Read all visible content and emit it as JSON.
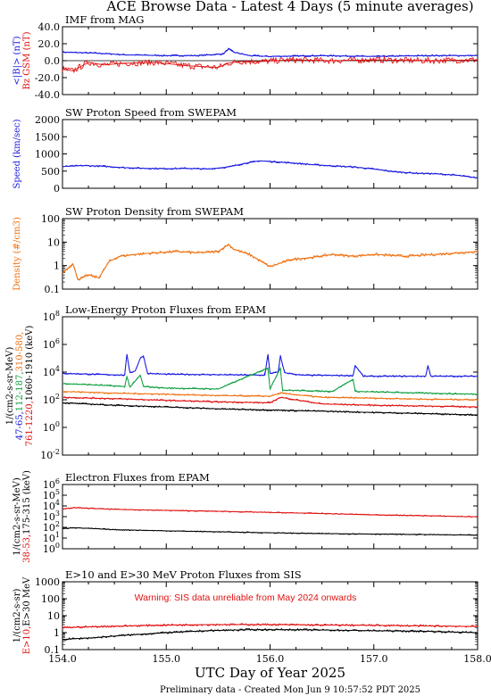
{
  "title": "ACE Browse Data - Latest 4 Days (5 minute averages)",
  "footer": "Preliminary data - Created Mon Jun  9 10:57:52 PDT 2025",
  "colors": {
    "black": "#000000",
    "blue": "#1a1ae0",
    "red": "#e01010",
    "green": "#10a040",
    "orange": "#f07010"
  },
  "chart_data": [
    {
      "type": "line",
      "title": "IMF from MAG",
      "ylim": [
        -40,
        40
      ],
      "yticks": [
        "40.0",
        "20.0",
        "0.0",
        "-20.0",
        "-40.0"
      ],
      "ylabel_parts": [
        {
          "text": "<|B|> (nT)",
          "color": "blue"
        },
        {
          "text": "Bz GSM (nT)",
          "color": "red"
        }
      ],
      "series": [
        {
          "color": "blue",
          "x": [
            154.0,
            154.3,
            154.6,
            155.0,
            155.3,
            155.55,
            155.6,
            155.65,
            155.8,
            156.0,
            156.5,
            157.0,
            157.5,
            158.0
          ],
          "values": [
            10,
            9,
            7,
            6,
            6,
            8,
            14,
            10,
            6,
            5,
            6,
            5,
            6,
            6
          ]
        },
        {
          "color": "red",
          "x": [
            154.0,
            154.1,
            154.25,
            154.4,
            154.6,
            154.9,
            155.2,
            155.5,
            155.6,
            155.7,
            155.9,
            156.2,
            156.6,
            157.0,
            157.5,
            158.0
          ],
          "values": [
            -10,
            -12,
            -2,
            -5,
            -3,
            -2,
            -6,
            -8,
            -3,
            -1,
            -1,
            1,
            0,
            1,
            0,
            1
          ]
        }
      ]
    },
    {
      "type": "line",
      "title": "SW Proton Speed from SWEPAM",
      "ylim": [
        0,
        2000
      ],
      "yticks": [
        "2000",
        "1500",
        "1000",
        "500",
        "0"
      ],
      "ylabel_parts": [
        {
          "text": "Speed (km/sec)",
          "color": "blue"
        }
      ],
      "series": [
        {
          "color": "blue",
          "x": [
            154.0,
            154.2,
            154.4,
            154.6,
            154.8,
            155.0,
            155.2,
            155.4,
            155.6,
            155.75,
            155.9,
            156.0,
            156.2,
            156.4,
            156.6,
            156.8,
            157.0,
            157.2,
            157.4,
            157.6,
            157.8,
            158.0
          ],
          "values": [
            630,
            660,
            640,
            600,
            580,
            570,
            580,
            560,
            620,
            720,
            800,
            780,
            740,
            690,
            650,
            620,
            560,
            480,
            440,
            420,
            380,
            300
          ]
        }
      ]
    },
    {
      "type": "line",
      "title": "SW Proton Density from SWEPAM",
      "scale": "log",
      "ylim": [
        0.1,
        100
      ],
      "yticks": [
        "100",
        "10",
        "1",
        "0.1"
      ],
      "ylabel_parts": [
        {
          "text": "Density (#/cm3)",
          "color": "orange"
        }
      ],
      "series": [
        {
          "color": "orange",
          "x": [
            154.0,
            154.1,
            154.15,
            154.25,
            154.35,
            154.45,
            154.55,
            154.7,
            154.9,
            155.1,
            155.3,
            155.5,
            155.6,
            155.65,
            155.8,
            156.0,
            156.2,
            156.4,
            156.6,
            156.8,
            157.0,
            157.3,
            157.6,
            158.0
          ],
          "values": [
            0.5,
            1.2,
            0.25,
            0.4,
            0.3,
            1.5,
            2.5,
            3,
            3.5,
            4,
            3.5,
            4,
            8,
            5,
            3,
            0.9,
            1.8,
            2.2,
            3,
            2.5,
            3,
            2.5,
            3,
            4
          ]
        }
      ]
    },
    {
      "type": "line",
      "title": "Low-Energy Proton Fluxes from EPAM",
      "scale": "log",
      "ylim": [
        0.01,
        100000000
      ],
      "yticks": [
        "10^8",
        "10^6",
        "10^4",
        "10^2",
        "10^0",
        "10^-2"
      ],
      "ylabel_parts": [
        {
          "text": "1/(cm2-s-sr-MeV)",
          "color": "black"
        },
        {
          "text": "47-65,",
          "color": "blue"
        },
        {
          "text": "112-187,",
          "color": "green"
        },
        {
          "text": "310-580,",
          "color": "orange"
        },
        {
          "text": "761-1220,",
          "color": "red"
        },
        {
          "text": "1060-1910 (keV)",
          "color": "black"
        }
      ],
      "series": [
        {
          "color": "blue",
          "x": [
            154.0,
            154.6,
            154.62,
            154.65,
            154.7,
            154.75,
            154.78,
            154.82,
            155.0,
            155.5,
            155.95,
            155.98,
            156.0,
            156.08,
            156.1,
            156.14,
            156.3,
            156.8,
            156.82,
            156.9,
            157.5,
            157.52,
            157.55,
            158.0
          ],
          "values": [
            8000,
            6000,
            200000,
            9000,
            12000,
            100000,
            150000,
            8000,
            7000,
            6500,
            6000,
            200000,
            8000,
            10000,
            150000,
            9000,
            6000,
            5500,
            30000,
            5000,
            5000,
            30000,
            5000,
            5000
          ]
        },
        {
          "color": "green",
          "x": [
            154.0,
            154.3,
            154.6,
            154.62,
            154.65,
            154.75,
            154.78,
            155.0,
            155.5,
            155.98,
            156.0,
            156.1,
            156.12,
            156.6,
            156.8,
            156.82,
            157.5,
            158.0
          ],
          "values": [
            1500,
            1200,
            900,
            5000,
            800,
            6000,
            900,
            700,
            600,
            20000,
            600,
            20000,
            500,
            400,
            3000,
            400,
            300,
            250
          ]
        },
        {
          "color": "orange",
          "x": [
            154.0,
            154.5,
            155.0,
            155.5,
            156.0,
            156.1,
            156.5,
            157.0,
            157.5,
            158.0
          ],
          "values": [
            400,
            300,
            250,
            200,
            180,
            300,
            150,
            130,
            110,
            100
          ]
        },
        {
          "color": "red",
          "x": [
            154.0,
            154.5,
            155.0,
            155.5,
            156.0,
            156.1,
            156.5,
            157.0,
            157.5,
            158.0
          ],
          "values": [
            150,
            120,
            90,
            70,
            60,
            150,
            50,
            40,
            35,
            30
          ]
        },
        {
          "color": "black",
          "x": [
            154.0,
            154.5,
            155.0,
            155.5,
            156.0,
            156.5,
            157.0,
            157.5,
            158.0
          ],
          "values": [
            60,
            40,
            30,
            22,
            18,
            15,
            12,
            10,
            8
          ]
        }
      ]
    },
    {
      "type": "line",
      "title": "Electron Fluxes from EPAM",
      "scale": "log",
      "ylim": [
        1,
        10000000
      ],
      "yticks": [
        "10^6",
        "10^5",
        "10^4",
        "10^3",
        "10^2",
        "10^1",
        "10^0"
      ],
      "ylabel_parts": [
        {
          "text": "1/(cm2-s-sr-MeV)",
          "color": "black"
        },
        {
          "text": "38-53,",
          "color": "red"
        },
        {
          "text": "175-315 (keV)",
          "color": "black"
        }
      ],
      "series": [
        {
          "color": "red",
          "x": [
            154.0,
            154.1,
            154.5,
            155.0,
            155.5,
            156.0,
            156.5,
            157.0,
            157.5,
            158.0
          ],
          "values": [
            20000,
            30000,
            20000,
            15000,
            12000,
            9000,
            7000,
            5000,
            4000,
            3000
          ]
        },
        {
          "color": "black",
          "x": [
            154.0,
            154.1,
            154.5,
            155.0,
            155.5,
            156.0,
            156.5,
            157.0,
            157.5,
            158.0
          ],
          "values": [
            150,
            200,
            120,
            90,
            70,
            55,
            45,
            40,
            35,
            30
          ]
        }
      ]
    },
    {
      "type": "line",
      "title": "E>10 and E>30 MeV Proton Fluxes from SIS",
      "scale": "log",
      "ylim": [
        0.1,
        1000
      ],
      "yticks": [
        "1000",
        "100",
        "10",
        "1",
        "0.1"
      ],
      "xticks": [
        "154.0",
        "155.0",
        "156.0",
        "157.0",
        "158.0"
      ],
      "xlabel": "UTC Day of Year 2025",
      "annotation": "Warning: SIS data unreliable from May 2024 onwards",
      "ylabel_parts": [
        {
          "text": "1/(cm2-s-sr)",
          "color": "black"
        },
        {
          "text": "E>10,",
          "color": "red"
        },
        {
          "text": "E>30 MeV",
          "color": "black"
        }
      ],
      "series": [
        {
          "color": "red",
          "x": [
            154.0,
            154.5,
            155.0,
            155.5,
            156.0,
            156.5,
            157.0,
            157.5,
            158.0
          ],
          "values": [
            2.0,
            2.4,
            2.8,
            3.0,
            3.0,
            2.8,
            2.7,
            2.5,
            2.3
          ]
        },
        {
          "color": "black",
          "x": [
            154.0,
            154.3,
            154.6,
            155.0,
            155.4,
            155.8,
            156.2,
            156.6,
            157.0,
            157.5,
            158.0
          ],
          "values": [
            0.4,
            0.5,
            0.7,
            1.0,
            1.3,
            1.5,
            1.5,
            1.4,
            1.3,
            1.2,
            1.0
          ]
        }
      ]
    }
  ]
}
